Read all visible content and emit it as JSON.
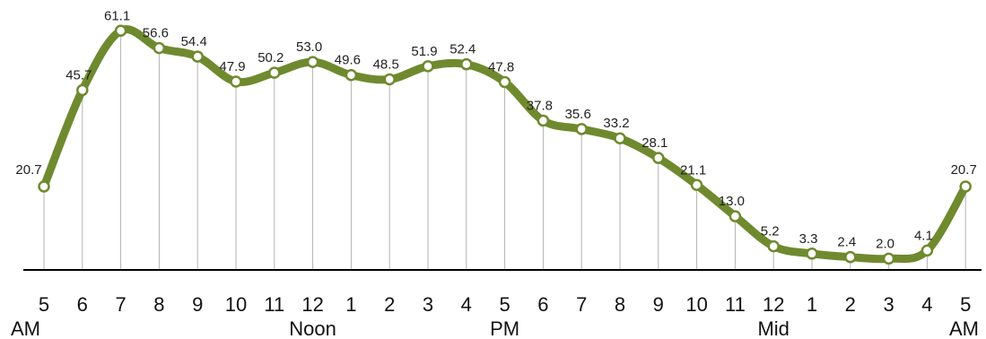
{
  "chart_data": {
    "type": "line",
    "title": "",
    "xlabel": "",
    "ylabel": "",
    "categories": [
      "5",
      "6",
      "7",
      "8",
      "9",
      "10",
      "11",
      "12",
      "1",
      "2",
      "3",
      "4",
      "5",
      "6",
      "7",
      "8",
      "9",
      "10",
      "11",
      "12",
      "1",
      "2",
      "3",
      "4",
      "5"
    ],
    "sublabels": [
      {
        "index": 0,
        "text": "AM"
      },
      {
        "index": 7,
        "text": "Noon"
      },
      {
        "index": 12,
        "text": "PM"
      },
      {
        "index": 19,
        "text": "Mid"
      },
      {
        "index": 24,
        "text": "AM"
      }
    ],
    "values": [
      20.7,
      45.7,
      61.1,
      56.6,
      54.4,
      47.9,
      50.2,
      53.0,
      49.6,
      48.5,
      51.9,
      52.4,
      47.8,
      37.8,
      35.6,
      33.2,
      28.1,
      21.1,
      13.0,
      5.2,
      3.3,
      2.4,
      2.0,
      4.1,
      20.7
    ],
    "value_labels": [
      "20.7",
      "45.7",
      "61.1",
      "56.6",
      "54.4",
      "47.9",
      "50.2",
      "53.0",
      "49.6",
      "48.5",
      "51.9",
      "52.4",
      "47.8",
      "37.8",
      "35.6",
      "33.2",
      "28.1",
      "21.1",
      "13.0",
      "5.2",
      "3.3",
      "2.4",
      "2.0",
      "4.1",
      "20.7"
    ],
    "ylim": [
      0,
      70
    ],
    "grid": false,
    "colors": {
      "line": "#6f8a2e",
      "point_fill": "#ffffff",
      "vline": "#b3b3b3",
      "axis": "#000000"
    }
  }
}
